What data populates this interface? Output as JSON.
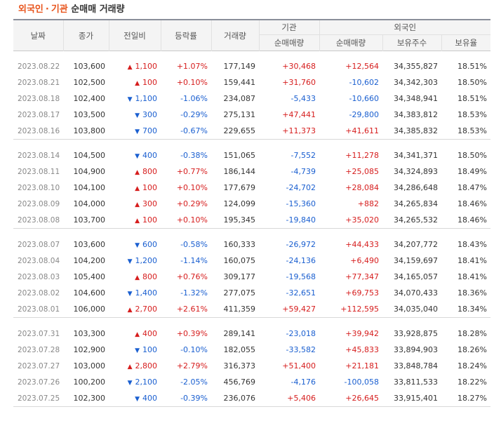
{
  "title": {
    "part1": "외국인",
    "sep": "·",
    "part2": "기관",
    "part3": "순매매 거래량"
  },
  "headers": {
    "date": "날짜",
    "close": "종가",
    "change": "전일비",
    "rate": "등락률",
    "volume": "거래량",
    "inst_group": "기관",
    "foreign_group": "외국인",
    "inst_net": "순매매량",
    "foreign_net": "순매매량",
    "holdings": "보유주수",
    "ratio": "보유율"
  },
  "colors": {
    "up": "#d61d1d",
    "down": "#1a5fd0",
    "accent": "#e8541c"
  },
  "groups": [
    [
      {
        "date": "2023.08.22",
        "close": "103,600",
        "dir": "up",
        "change": "1,100",
        "rate": "+1.07%",
        "volume": "177,149",
        "inst": "+30,468",
        "foreign": "+12,564",
        "holdings": "34,355,827",
        "ratio": "18.51%"
      },
      {
        "date": "2023.08.21",
        "close": "102,500",
        "dir": "up",
        "change": "100",
        "rate": "+0.10%",
        "volume": "159,441",
        "inst": "+31,760",
        "foreign": "-10,602",
        "holdings": "34,342,303",
        "ratio": "18.50%"
      },
      {
        "date": "2023.08.18",
        "close": "102,400",
        "dir": "down",
        "change": "1,100",
        "rate": "-1.06%",
        "volume": "234,087",
        "inst": "-5,433",
        "foreign": "-10,660",
        "holdings": "34,348,941",
        "ratio": "18.51%"
      },
      {
        "date": "2023.08.17",
        "close": "103,500",
        "dir": "down",
        "change": "300",
        "rate": "-0.29%",
        "volume": "275,131",
        "inst": "+47,441",
        "foreign": "-29,800",
        "holdings": "34,383,812",
        "ratio": "18.53%"
      },
      {
        "date": "2023.08.16",
        "close": "103,800",
        "dir": "down",
        "change": "700",
        "rate": "-0.67%",
        "volume": "229,655",
        "inst": "+11,373",
        "foreign": "+41,611",
        "holdings": "34,385,832",
        "ratio": "18.53%"
      }
    ],
    [
      {
        "date": "2023.08.14",
        "close": "104,500",
        "dir": "down",
        "change": "400",
        "rate": "-0.38%",
        "volume": "151,065",
        "inst": "-7,552",
        "foreign": "+11,278",
        "holdings": "34,341,371",
        "ratio": "18.50%"
      },
      {
        "date": "2023.08.11",
        "close": "104,900",
        "dir": "up",
        "change": "800",
        "rate": "+0.77%",
        "volume": "186,144",
        "inst": "-4,739",
        "foreign": "+25,085",
        "holdings": "34,324,893",
        "ratio": "18.49%"
      },
      {
        "date": "2023.08.10",
        "close": "104,100",
        "dir": "up",
        "change": "100",
        "rate": "+0.10%",
        "volume": "177,679",
        "inst": "-24,702",
        "foreign": "+28,084",
        "holdings": "34,286,648",
        "ratio": "18.47%"
      },
      {
        "date": "2023.08.09",
        "close": "104,000",
        "dir": "up",
        "change": "300",
        "rate": "+0.29%",
        "volume": "124,099",
        "inst": "-15,360",
        "foreign": "+882",
        "holdings": "34,265,834",
        "ratio": "18.46%"
      },
      {
        "date": "2023.08.08",
        "close": "103,700",
        "dir": "up",
        "change": "100",
        "rate": "+0.10%",
        "volume": "195,345",
        "inst": "-19,840",
        "foreign": "+35,020",
        "holdings": "34,265,532",
        "ratio": "18.46%"
      }
    ],
    [
      {
        "date": "2023.08.07",
        "close": "103,600",
        "dir": "down",
        "change": "600",
        "rate": "-0.58%",
        "volume": "160,333",
        "inst": "-26,972",
        "foreign": "+44,433",
        "holdings": "34,207,772",
        "ratio": "18.43%"
      },
      {
        "date": "2023.08.04",
        "close": "104,200",
        "dir": "down",
        "change": "1,200",
        "rate": "-1.14%",
        "volume": "160,075",
        "inst": "-24,136",
        "foreign": "+6,490",
        "holdings": "34,159,697",
        "ratio": "18.41%"
      },
      {
        "date": "2023.08.03",
        "close": "105,400",
        "dir": "up",
        "change": "800",
        "rate": "+0.76%",
        "volume": "309,177",
        "inst": "-19,568",
        "foreign": "+77,347",
        "holdings": "34,165,057",
        "ratio": "18.41%"
      },
      {
        "date": "2023.08.02",
        "close": "104,600",
        "dir": "down",
        "change": "1,400",
        "rate": "-1.32%",
        "volume": "277,075",
        "inst": "-32,651",
        "foreign": "+69,753",
        "holdings": "34,070,433",
        "ratio": "18.36%"
      },
      {
        "date": "2023.08.01",
        "close": "106,000",
        "dir": "up",
        "change": "2,700",
        "rate": "+2.61%",
        "volume": "411,359",
        "inst": "+59,427",
        "foreign": "+112,595",
        "holdings": "34,035,040",
        "ratio": "18.34%"
      }
    ],
    [
      {
        "date": "2023.07.31",
        "close": "103,300",
        "dir": "up",
        "change": "400",
        "rate": "+0.39%",
        "volume": "289,141",
        "inst": "-23,018",
        "foreign": "+39,942",
        "holdings": "33,928,875",
        "ratio": "18.28%"
      },
      {
        "date": "2023.07.28",
        "close": "102,900",
        "dir": "down",
        "change": "100",
        "rate": "-0.10%",
        "volume": "182,055",
        "inst": "-33,582",
        "foreign": "+45,833",
        "holdings": "33,894,903",
        "ratio": "18.26%"
      },
      {
        "date": "2023.07.27",
        "close": "103,000",
        "dir": "up",
        "change": "2,800",
        "rate": "+2.79%",
        "volume": "316,373",
        "inst": "+51,400",
        "foreign": "+21,181",
        "holdings": "33,848,784",
        "ratio": "18.24%"
      },
      {
        "date": "2023.07.26",
        "close": "100,200",
        "dir": "down",
        "change": "2,100",
        "rate": "-2.05%",
        "volume": "456,769",
        "inst": "-4,176",
        "foreign": "-100,058",
        "holdings": "33,811,533",
        "ratio": "18.22%"
      },
      {
        "date": "2023.07.25",
        "close": "102,300",
        "dir": "down",
        "change": "400",
        "rate": "-0.39%",
        "volume": "236,076",
        "inst": "+5,406",
        "foreign": "+26,645",
        "holdings": "33,915,401",
        "ratio": "18.27%"
      }
    ]
  ]
}
